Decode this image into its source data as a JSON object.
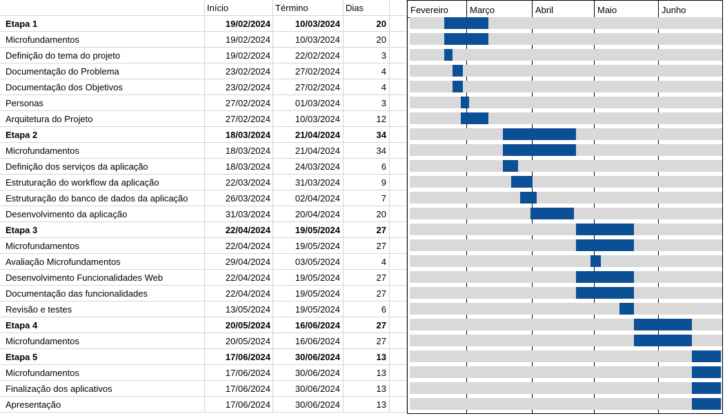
{
  "header": {
    "task": "",
    "start": "Início",
    "end": "Término",
    "days": "Dias"
  },
  "months": [
    "Fevereiro",
    "Março",
    "Abril",
    "Maio",
    "Junho"
  ],
  "rows": [
    {
      "task": "Etapa 1",
      "start": "19/02/2024",
      "end": "10/03/2024",
      "days": "20",
      "bold": true
    },
    {
      "task": "Microfundamentos",
      "start": "19/02/2024",
      "end": "10/03/2024",
      "days": "20",
      "bold": false
    },
    {
      "task": "Definição do tema do projeto",
      "start": "19/02/2024",
      "end": "22/02/2024",
      "days": "3",
      "bold": false
    },
    {
      "task": "Documentação do Problema",
      "start": "23/02/2024",
      "end": "27/02/2024",
      "days": "4",
      "bold": false
    },
    {
      "task": "Documentação dos Objetivos",
      "start": "23/02/2024",
      "end": "27/02/2024",
      "days": "4",
      "bold": false
    },
    {
      "task": "Personas",
      "start": "27/02/2024",
      "end": "01/03/2024",
      "days": "3",
      "bold": false
    },
    {
      "task": "Arquitetura do Projeto",
      "start": "27/02/2024",
      "end": "10/03/2024",
      "days": "12",
      "bold": false
    },
    {
      "task": "Etapa 2",
      "start": "18/03/2024",
      "end": "21/04/2024",
      "days": "34",
      "bold": true
    },
    {
      "task": "Microfundamentos",
      "start": "18/03/2024",
      "end": "21/04/2024",
      "days": "34",
      "bold": false
    },
    {
      "task": "Definição dos serviços da aplicação",
      "start": "18/03/2024",
      "end": "24/03/2024",
      "days": "6",
      "bold": false
    },
    {
      "task": "Estruturação do workflow da aplicação",
      "start": "22/03/2024",
      "end": "31/03/2024",
      "days": "9",
      "bold": false
    },
    {
      "task": "Estruturação do banco de dados da aplicação",
      "start": "26/03/2024",
      "end": "02/04/2024",
      "days": "7",
      "bold": false
    },
    {
      "task": "Desenvolvimento da aplicação",
      "start": "31/03/2024",
      "end": "20/04/2024",
      "days": "20",
      "bold": false
    },
    {
      "task": "Etapa 3",
      "start": "22/04/2024",
      "end": "19/05/2024",
      "days": "27",
      "bold": true
    },
    {
      "task": "Microfundamentos",
      "start": "22/04/2024",
      "end": "19/05/2024",
      "days": "27",
      "bold": false
    },
    {
      "task": "Avaliação Microfundamentos",
      "start": "29/04/2024",
      "end": "03/05/2024",
      "days": "4",
      "bold": false
    },
    {
      "task": "Desenvolvimento Funcionalidades Web",
      "start": "22/04/2024",
      "end": "19/05/2024",
      "days": "27",
      "bold": false
    },
    {
      "task": "Documentação das funcionalidades",
      "start": "22/04/2024",
      "end": "19/05/2024",
      "days": "27",
      "bold": false
    },
    {
      "task": "Revisão e testes",
      "start": "13/05/2024",
      "end": "19/05/2024",
      "days": "6",
      "bold": false
    },
    {
      "task": "Etapa 4",
      "start": "20/05/2024",
      "end": "16/06/2024",
      "days": "27",
      "bold": true
    },
    {
      "task": "Microfundamentos",
      "start": "20/05/2024",
      "end": "16/06/2024",
      "days": "27",
      "bold": false
    },
    {
      "task": "Etapa 5",
      "start": "17/06/2024",
      "end": "30/06/2024",
      "days": "13",
      "bold": true
    },
    {
      "task": "Microfundamentos",
      "start": "17/06/2024",
      "end": "30/06/2024",
      "days": "13",
      "bold": false
    },
    {
      "task": "Finalização dos aplicativos",
      "start": "17/06/2024",
      "end": "30/06/2024",
      "days": "13",
      "bold": false
    },
    {
      "task": "Apresentação",
      "start": "17/06/2024",
      "end": "30/06/2024",
      "days": "13",
      "bold": false
    }
  ],
  "colors": {
    "bar": "#0b4f96",
    "track": "#d9d9d9",
    "gridline": "#d4d4d4"
  }
}
